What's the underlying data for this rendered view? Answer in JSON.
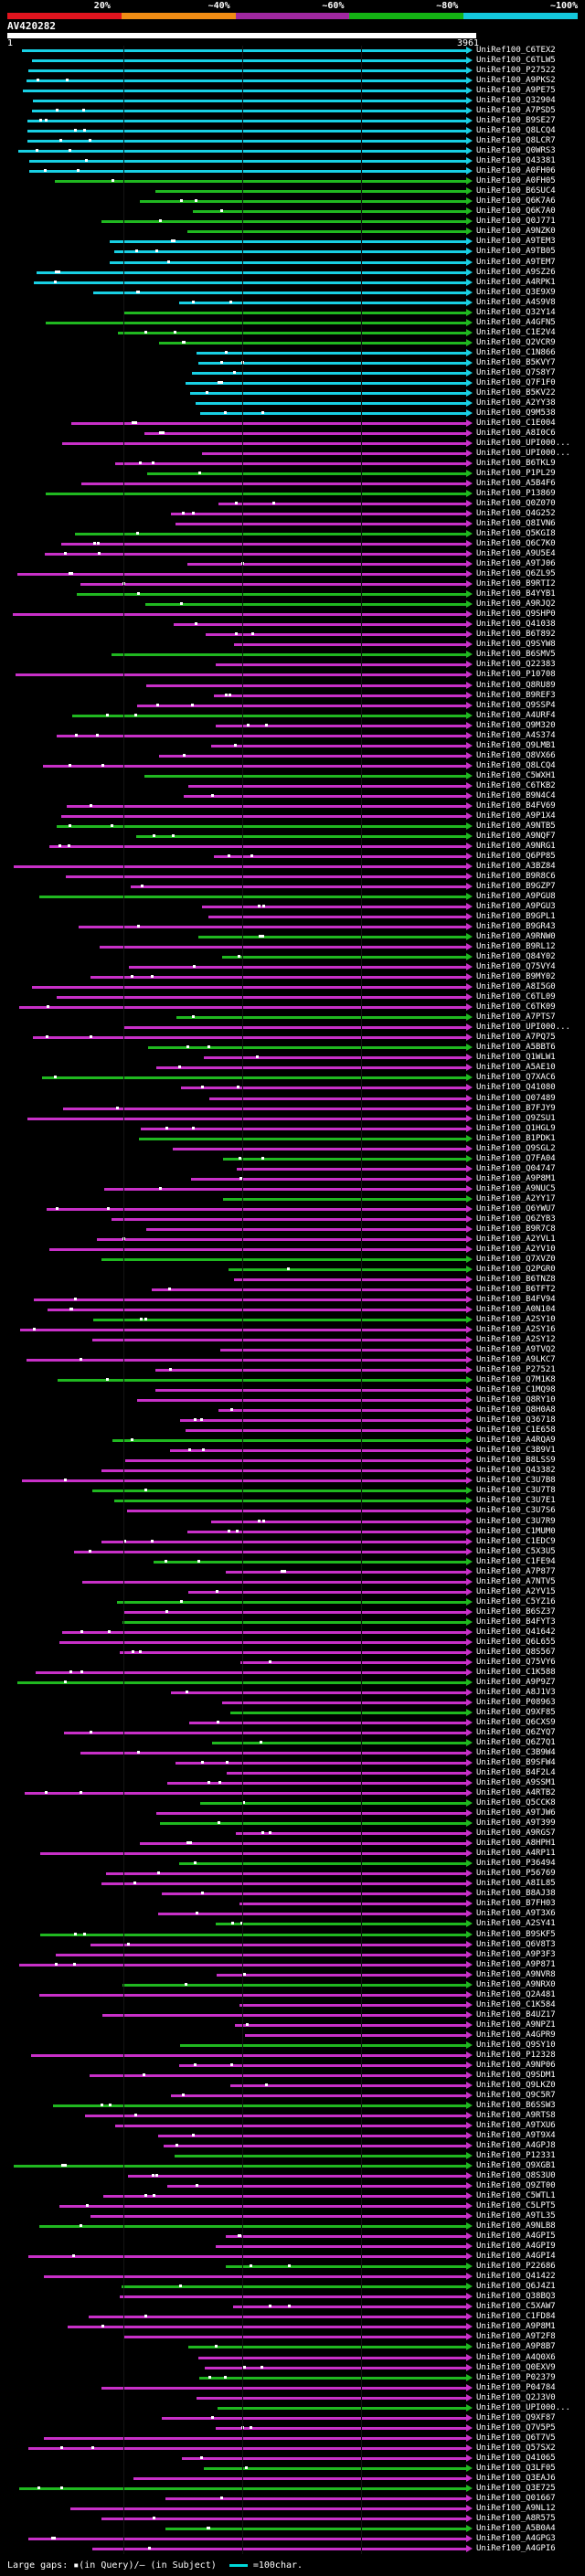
{
  "scale": {
    "labels": [
      "20%",
      "~40%",
      "~60%",
      "~80%",
      "~100%"
    ],
    "colors": [
      "#e0141e",
      "#f08c14",
      "#a028a0",
      "#14b414",
      "#14c8dc"
    ]
  },
  "query": {
    "name": "AV420282",
    "start": "1",
    "end": "3961"
  },
  "hit_palette": {
    "cyan": "#18d0e4",
    "green": "#20b820",
    "magenta": "#c830c8"
  },
  "hits": [
    "UniRef100_C6TEX2",
    "UniRef100_C6TLW5",
    "UniRef100_P27522",
    "UniRef100_A9PKS2",
    "UniRef100_A9PE75",
    "UniRef100_Q32904",
    "UniRef100_A7PSD5",
    "UniRef100_B9SE27",
    "UniRef100_Q8LCQ4",
    "UniRef100_Q8LCR7",
    "UniRef100_Q0WRS3",
    "UniRef100_Q43381",
    "UniRef100_A0FH06",
    "UniRef100_A0FH05",
    "UniRef100_B6SUC4",
    "UniRef100_Q6K7A6",
    "UniRef100_Q6K7A0",
    "UniRef100_Q0J771",
    "UniRef100_A9NZK0",
    "UniRef100_A9TEM3",
    "UniRef100_A9TB05",
    "UniRef100_A9TEM7",
    "UniRef100_A9SZ26",
    "UniRef100_A4RPK1",
    "UniRef100_Q3E9X9",
    "UniRef100_A4S9V8",
    "UniRef100_Q32Y14",
    "UniRef100_A4GFN5",
    "UniRef100_C1E2V4",
    "UniRef100_Q2VCR9",
    "UniRef100_C1N866",
    "UniRef100_B5KVY7",
    "UniRef100_Q7S8Y7",
    "UniRef100_Q7F1F0",
    "UniRef100_B5KV22",
    "UniRef100_A2YY38",
    "UniRef100_Q9M538",
    "UniRef100_C1E004",
    "UniRef100_A8I0C6",
    "UniRef100_UPI000...",
    "UniRef100_UPI000...",
    "UniRef100_B6TKL9",
    "UniRef100_P1PL29",
    "UniRef100_A5B4F6",
    "UniRef100_P13869",
    "UniRef100_Q0Z070",
    "UniRef100_Q4G252",
    "UniRef100_Q8IVN6",
    "UniRef100_Q5KGI8",
    "UniRef100_Q6C7K0",
    "UniRef100_A9U5E4",
    "UniRef100_A9TJ06",
    "UniRef100_Q6ZL95",
    "UniRef100_B9RTI2",
    "UniRef100_B4YYB1",
    "UniRef100_A9RJQ2",
    "UniRef100_Q9SHP0",
    "UniRef100_Q41038",
    "UniRef100_B6T892",
    "UniRef100_Q9SYW8",
    "UniRef100_B6SMV5",
    "UniRef100_Q22383",
    "UniRef100_P10708",
    "UniRef100_Q8RU89",
    "UniRef100_B9REF3",
    "UniRef100_Q9SSP4",
    "UniRef100_A4URF4",
    "UniRef100_Q9M320",
    "UniRef100_A4S374",
    "UniRef100_Q9LMB1",
    "UniRef100_Q8VX66",
    "UniRef100_Q8LCQ4",
    "UniRef100_C5WXH1",
    "UniRef100_C6TKB2",
    "UniRef100_B9N4C4",
    "UniRef100_B4FV69",
    "UniRef100_A9P1X4",
    "UniRef100_A9NTB5",
    "UniRef100_A9NQF7",
    "UniRef100_A9NRG1",
    "UniRef100_Q6PP85",
    "UniRef100_A3BZ84",
    "UniRef100_B9R8C6",
    "UniRef100_B9GZP7",
    "UniRef100_A9PGU8",
    "UniRef100_A9PGU3",
    "UniRef100_B9GPL1",
    "UniRef100_B9GR43",
    "UniRef100_A9RNW0",
    "UniRef100_B9RL12",
    "UniRef100_Q84Y02",
    "UniRef100_Q75VY4",
    "UniRef100_B9MY02",
    "UniRef100_A8I5G0",
    "UniRef100_C6TL09",
    "UniRef100_C6TK09",
    "UniRef100_A7PTS7",
    "UniRef100_UPI000...",
    "UniRef100_A7PQ75",
    "UniRef100_A5BBT6",
    "UniRef100_Q1WLW1",
    "UniRef100_A5AE10",
    "UniRef100_Q7XAC6",
    "UniRef100_Q41080",
    "UniRef100_Q07489",
    "UniRef100_B7FJY9",
    "UniRef100_Q9ZSU1",
    "UniRef100_Q1HGL9",
    "UniRef100_B1PDK1",
    "UniRef100_Q9SGL2",
    "UniRef100_Q7FA04",
    "UniRef100_Q04747",
    "UniRef100_A9P8M1",
    "UniRef100_A9NUC5",
    "UniRef100_A2YY17",
    "UniRef100_Q6YWU7",
    "UniRef100_Q6ZYB3",
    "UniRef100_B9R7C8",
    "UniRef100_A2YVL1",
    "UniRef100_A2YV10",
    "UniRef100_Q7XVZ0",
    "UniRef100_Q2PGR0",
    "UniRef100_B6TNZ8",
    "UniRef100_B6TFT2",
    "UniRef100_B4FV94",
    "UniRef100_A0N104",
    "UniRef100_A2SY10",
    "UniRef100_A2SY16",
    "UniRef100_A2SY12",
    "UniRef100_A9TVQ2",
    "UniRef100_A9LKC7",
    "UniRef100_P27521",
    "UniRef100_Q7M1K8",
    "UniRef100_C1MQ98",
    "UniRef100_Q8RY10",
    "UniRef100_Q8H0A8",
    "UniRef100_Q36718",
    "UniRef100_C1E658",
    "UniRef100_A4RQA9",
    "UniRef100_C3B9V1",
    "UniRef100_B8LSS9",
    "UniRef100_Q43382",
    "UniRef100_C3U7B8",
    "UniRef100_C3U7T8",
    "UniRef100_C3U7E1",
    "UniRef100_C3U7S6",
    "UniRef100_C3U7R9",
    "UniRef100_C1MUM0",
    "UniRef100_C1EDC9",
    "UniRef100_C5X3U5",
    "UniRef100_C1FE94",
    "UniRef100_A7P877",
    "UniRef100_A7NTV5",
    "UniRef100_A2YV15",
    "UniRef100_C5YZ16",
    "UniRef100_B6SZ37",
    "UniRef100_B4FYT3",
    "UniRef100_Q41642",
    "UniRef100_Q6L655",
    "UniRef100_Q8S567",
    "UniRef100_Q75VY6",
    "UniRef100_C1K588",
    "UniRef100_A9P9Z7",
    "UniRef100_A8J1V3",
    "UniRef100_P08963",
    "UniRef100_Q9XF85",
    "UniRef100_Q6CXS9",
    "UniRef100_Q6ZYQ7",
    "UniRef100_Q6Z7Q1",
    "UniRef100_C3B9W4",
    "UniRef100_B9SFW4",
    "UniRef100_B4F2L4",
    "UniRef100_A9SSM1",
    "UniRef100_A4RTB2",
    "UniRef100_Q5CCK8",
    "UniRef100_A9TJW6",
    "UniRef100_A9T399",
    "UniRef100_A9RGS7",
    "UniRef100_A8HPH1",
    "UniRef100_A4RP11",
    "UniRef100_P36494",
    "UniRef100_P56769",
    "UniRef100_A8IL85",
    "UniRef100_B8AJ38",
    "UniRef100_B7FH03",
    "UniRef100_A9T3X6",
    "UniRef100_A2SY41",
    "UniRef100_B9SKF5",
    "UniRef100_Q6V8T3",
    "UniRef100_A9P3F3",
    "UniRef100_A9P871",
    "UniRef100_A9NVR8",
    "UniRef100_A9NRX0",
    "UniRef100_Q2A481",
    "UniRef100_C1K584",
    "UniRef100_B4UZ17",
    "UniRef100_A9NPZ1",
    "UniRef100_A4GPR9",
    "UniRef100_Q9SY10",
    "UniRef100_P12328",
    "UniRef100_A9NP06",
    "UniRef100_Q9SDM1",
    "UniRef100_Q9LKZ0",
    "UniRef100_Q9C5R7",
    "UniRef100_B6SSW3",
    "UniRef100_A9RTS8",
    "UniRef100_A9TXU6",
    "UniRef100_A9T9X4",
    "UniRef100_A4GPJ8",
    "UniRef100_P12331",
    "UniRef100_Q9XGB1",
    "UniRef100_Q8S3U0",
    "UniRef100_Q9ZT00",
    "UniRef100_C5WTL1",
    "UniRef100_C5LPT5",
    "UniRef100_A9TL35",
    "UniRef100_A9NLB8",
    "UniRef100_A4GPI5",
    "UniRef100_A4GPI9",
    "UniRef100_A4GPI4",
    "UniRef100_P22686",
    "UniRef100_Q41422",
    "UniRef100_Q6J4Z1",
    "UniRef100_Q38BQ3",
    "UniRef100_C5XAW7",
    "UniRef100_C1FD84",
    "UniRef100_A9P8M1",
    "UniRef100_A9T2F8",
    "UniRef100_A9P8B7",
    "UniRef100_A4Q0X6",
    "UniRef100_Q0EXV9",
    "UniRef100_P02379",
    "UniRef100_P04784",
    "UniRef100_Q2J3V0",
    "UniRef100_UPI000...",
    "UniRef100_Q9XF87",
    "UniRef100_Q7V5P5",
    "UniRef100_Q6T7V5",
    "UniRef100_Q57SX2",
    "UniRef100_Q41065",
    "UniRef100_Q3LF05",
    "UniRef100_Q3EAJ6",
    "UniRef100_Q3E725",
    "UniRef100_Q01667",
    "UniRef100_A9NL12",
    "UniRef100_A8R575",
    "UniRef100_A5B0A4",
    "UniRef100_A4GPG3",
    "UniRef100_A4GPI6"
  ],
  "legend": {
    "text": "Large gaps: ▪(in Query)/– (in Subject)",
    "scale_text": "=100char."
  }
}
